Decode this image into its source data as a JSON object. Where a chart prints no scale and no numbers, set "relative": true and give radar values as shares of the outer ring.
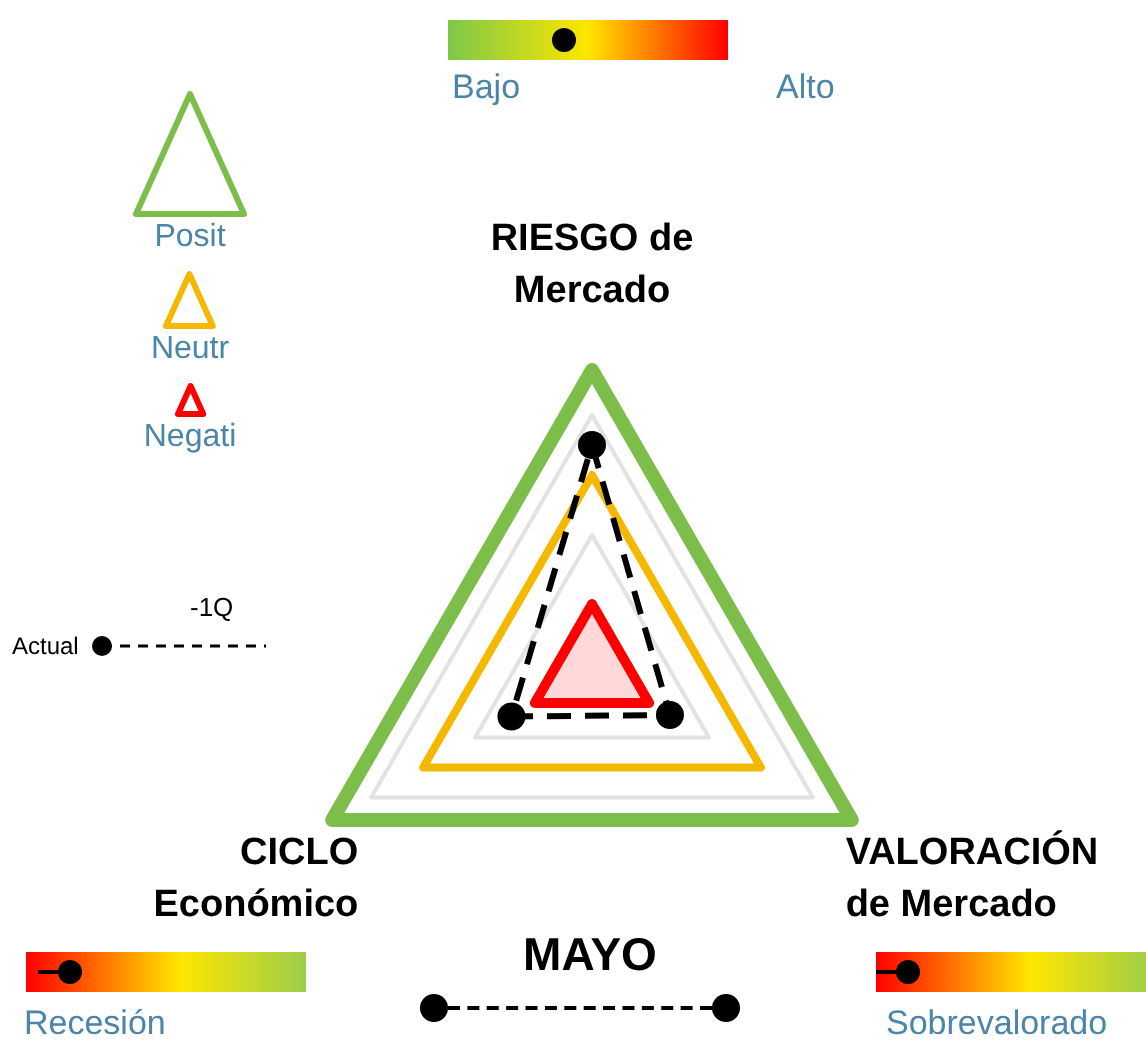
{
  "chart_data": {
    "type": "radar",
    "title": "MAYO",
    "relative": true,
    "legend": "left",
    "categories": [
      "RIESGO de\nMercado",
      "VALORACIÓN\nde Mercado",
      "CICLO\nEconómico"
    ],
    "series": [
      {
        "name": "Actual",
        "color": "#000000",
        "values": [
          0.75,
          0.3,
          0.31
        ],
        "marker": "circle",
        "line_style": "dashed"
      }
    ],
    "annotations": [
      "Bajo",
      "Alto",
      "Recesión",
      "Sobrevalorado",
      "-1Q",
      "Posit",
      "Neutr",
      "Negati"
    ]
  }
}
